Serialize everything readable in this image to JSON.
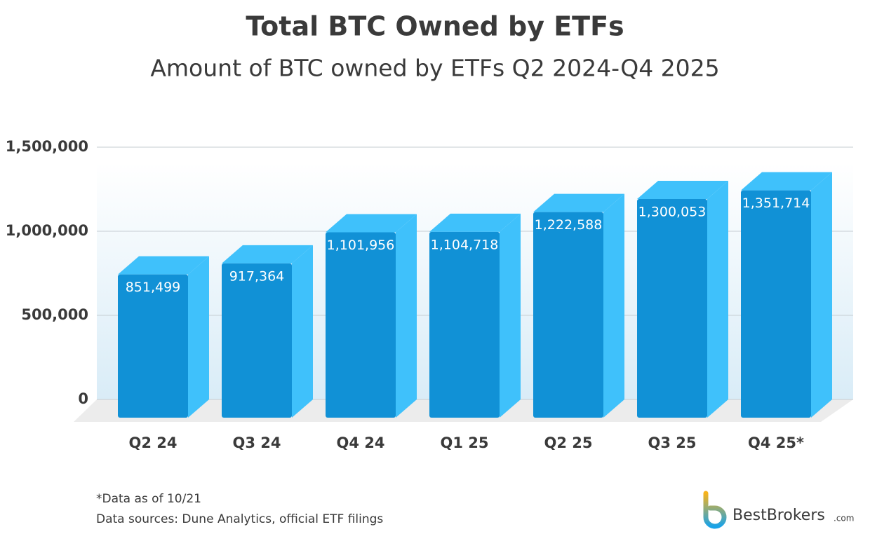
{
  "chart_data": {
    "type": "bar3d",
    "title": "Total BTC Owned by ETFs",
    "subtitle": "Amount of BTC owned by ETFs Q2 2024-Q4 2025",
    "categories": [
      "Q2 24",
      "Q3 24",
      "Q4 24",
      "Q1 25",
      "Q2 25",
      "Q3 25",
      "Q4 25*"
    ],
    "values": [
      851499,
      917364,
      1101956,
      1104718,
      1222588,
      1300053,
      1351714
    ],
    "value_labels": [
      "851,499",
      "917,364",
      "1,101,956",
      "1,104,718",
      "1,222,588",
      "1,300,053",
      "1,351,714"
    ],
    "color": "#1191d6",
    "side_color": "#3fc1fb",
    "ylim": [
      0,
      1500000
    ],
    "yticks": [
      0,
      {
        "value": 500000,
        "label": "500,000"
      },
      {
        "value": 1000000,
        "label": "1,000,000"
      },
      {
        "value": 1500000,
        "label": "1,500,000"
      }
    ],
    "grid": true,
    "note": "*Data as of 10/21",
    "source": "Data sources: Dune Analytics, official ETF filings",
    "brand": "BestBrokers",
    "brand_suffix": ".com"
  }
}
